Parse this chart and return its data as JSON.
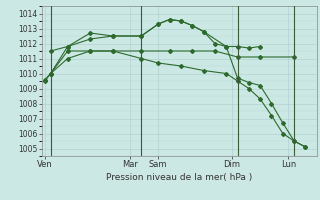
{
  "title": "",
  "xlabel": "Pression niveau de la mer( hPa )",
  "ylim": [
    1004.5,
    1014.5
  ],
  "yticks": [
    1005,
    1006,
    1007,
    1008,
    1009,
    1010,
    1011,
    1012,
    1013,
    1014
  ],
  "background_color": "#cce8e4",
  "grid_color": "#aacccc",
  "line_color": "#2d6a2d",
  "vline_color": "#3a5a3a",
  "day_labels": [
    "Ven",
    "Mar",
    "Sam",
    "Dim",
    "Lun"
  ],
  "day_positions": [
    0,
    7.5,
    10,
    16.5,
    21.5
  ],
  "vline_positions": [
    0.5,
    8.5,
    17,
    22
  ],
  "xlim": [
    -0.3,
    24
  ],
  "series": [
    {
      "x": [
        0.5,
        2,
        4,
        6,
        8.5,
        11,
        13,
        15,
        17,
        19,
        22
      ],
      "y": [
        1010.0,
        1011.5,
        1011.5,
        1011.5,
        1011.5,
        1011.5,
        1011.5,
        1011.5,
        1011.1,
        1011.1,
        1011.1
      ]
    },
    {
      "x": [
        0.5,
        2,
        4,
        6,
        8.5,
        10,
        11,
        12,
        13,
        14,
        15,
        16,
        17,
        18,
        19
      ],
      "y": [
        1011.5,
        1011.8,
        1012.3,
        1012.5,
        1012.5,
        1013.3,
        1013.6,
        1013.5,
        1013.2,
        1012.8,
        1012.0,
        1011.8,
        1011.8,
        1011.7,
        1011.8
      ]
    },
    {
      "x": [
        0,
        0.5,
        2,
        4,
        6,
        8.5,
        10,
        11,
        12,
        13,
        14,
        16,
        17,
        18,
        19,
        20,
        21,
        22,
        23
      ],
      "y": [
        1009.6,
        1010.0,
        1011.8,
        1012.7,
        1012.5,
        1012.5,
        1013.3,
        1013.6,
        1013.5,
        1013.2,
        1012.8,
        1011.8,
        1009.7,
        1009.4,
        1009.2,
        1008.0,
        1006.7,
        1005.5,
        1005.1
      ]
    },
    {
      "x": [
        0,
        0.5,
        2,
        4,
        6,
        8.5,
        10,
        12,
        14,
        16,
        17,
        18,
        19,
        20,
        21,
        22,
        23
      ],
      "y": [
        1009.5,
        1010.0,
        1011.0,
        1011.5,
        1011.5,
        1011.0,
        1010.7,
        1010.5,
        1010.2,
        1010.0,
        1009.5,
        1009.0,
        1008.3,
        1007.2,
        1006.0,
        1005.5,
        1005.1
      ]
    }
  ]
}
